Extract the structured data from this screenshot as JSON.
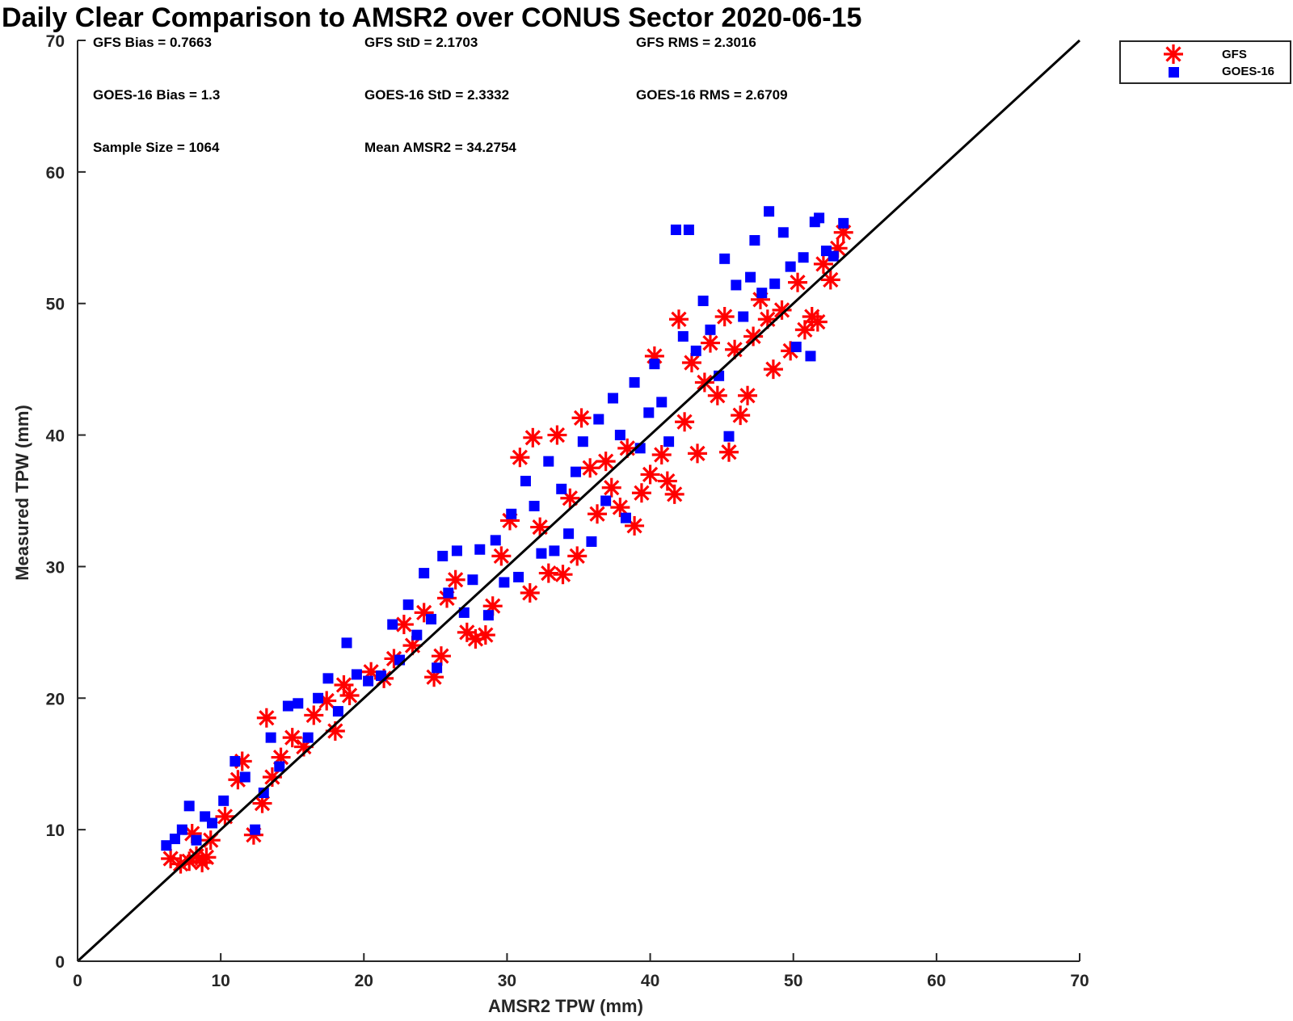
{
  "chart_data": {
    "type": "scatter",
    "title": "Daily Clear Comparison to AMSR2 over CONUS Sector 2020-06-15",
    "xlabel": "AMSR2 TPW (mm)",
    "ylabel": "Measured TPW (mm)",
    "xlim": [
      0,
      70
    ],
    "ylim": [
      0,
      70
    ],
    "xticks": [
      "0",
      "10",
      "20",
      "30",
      "40",
      "50",
      "60",
      "70"
    ],
    "yticks": [
      "0",
      "10",
      "20",
      "30",
      "40",
      "50",
      "60",
      "70"
    ],
    "grid": false,
    "legend_position": "outside-top-right",
    "reference_line": {
      "x": [
        0,
        70
      ],
      "y": [
        0,
        70
      ],
      "color": "#000000"
    },
    "stats": {
      "gfs_bias": "GFS Bias = 0.7663",
      "gfs_std": "GFS StD = 2.1703",
      "gfs_rms": "GFS RMS = 2.3016",
      "goes_bias": "GOES-16 Bias = 1.3",
      "goes_std": "GOES-16 StD = 2.3332",
      "goes_rms": "GOES-16 RMS = 2.6709",
      "sample_size": "Sample Size = 1064",
      "mean_amsr2": "Mean AMSR2 = 34.2754"
    },
    "series": [
      {
        "name": "GFS",
        "marker": "asterisk",
        "color": "#ff0000",
        "points": [
          [
            6.5,
            7.8
          ],
          [
            7.2,
            7.4
          ],
          [
            7.8,
            7.6
          ],
          [
            8.3,
            8.0
          ],
          [
            8.7,
            7.5
          ],
          [
            9.0,
            7.9
          ],
          [
            8.0,
            9.7
          ],
          [
            9.3,
            9.2
          ],
          [
            10.3,
            11.0
          ],
          [
            11.2,
            13.8
          ],
          [
            11.5,
            15.2
          ],
          [
            12.3,
            9.6
          ],
          [
            12.9,
            12.0
          ],
          [
            13.2,
            18.5
          ],
          [
            13.6,
            14.0
          ],
          [
            14.2,
            15.5
          ],
          [
            15.0,
            17.0
          ],
          [
            15.8,
            16.3
          ],
          [
            16.5,
            18.7
          ],
          [
            17.4,
            19.8
          ],
          [
            18.0,
            17.5
          ],
          [
            18.6,
            21.0
          ],
          [
            19.0,
            20.2
          ],
          [
            20.5,
            22.0
          ],
          [
            21.4,
            21.5
          ],
          [
            22.1,
            23.0
          ],
          [
            22.8,
            25.6
          ],
          [
            23.4,
            24.0
          ],
          [
            24.2,
            26.5
          ],
          [
            24.9,
            21.6
          ],
          [
            25.4,
            23.2
          ],
          [
            25.8,
            27.6
          ],
          [
            26.4,
            29.0
          ],
          [
            27.2,
            25.0
          ],
          [
            27.8,
            24.5
          ],
          [
            28.5,
            24.8
          ],
          [
            29.0,
            27.0
          ],
          [
            29.6,
            30.8
          ],
          [
            30.2,
            33.5
          ],
          [
            30.9,
            38.3
          ],
          [
            31.6,
            28.0
          ],
          [
            31.8,
            39.8
          ],
          [
            32.3,
            33.0
          ],
          [
            32.9,
            29.5
          ],
          [
            33.5,
            40.0
          ],
          [
            33.9,
            29.4
          ],
          [
            34.4,
            35.2
          ],
          [
            34.9,
            30.8
          ],
          [
            35.2,
            41.3
          ],
          [
            35.8,
            37.5
          ],
          [
            36.3,
            34.0
          ],
          [
            36.9,
            38.0
          ],
          [
            37.3,
            36.0
          ],
          [
            37.9,
            34.5
          ],
          [
            38.4,
            39.0
          ],
          [
            38.9,
            33.1
          ],
          [
            39.4,
            35.6
          ],
          [
            40.0,
            37.0
          ],
          [
            40.3,
            46.0
          ],
          [
            40.8,
            38.5
          ],
          [
            41.2,
            36.5
          ],
          [
            41.7,
            35.5
          ],
          [
            42.0,
            48.8
          ],
          [
            42.4,
            41.0
          ],
          [
            42.9,
            45.5
          ],
          [
            43.3,
            38.6
          ],
          [
            43.8,
            44.0
          ],
          [
            44.2,
            47.0
          ],
          [
            44.7,
            43.0
          ],
          [
            45.2,
            49.0
          ],
          [
            45.5,
            38.7
          ],
          [
            45.9,
            46.5
          ],
          [
            46.3,
            41.5
          ],
          [
            46.8,
            43.0
          ],
          [
            47.2,
            47.5
          ],
          [
            47.7,
            50.3
          ],
          [
            48.2,
            48.8
          ],
          [
            48.6,
            45.0
          ],
          [
            49.2,
            49.5
          ],
          [
            49.8,
            46.4
          ],
          [
            50.3,
            51.6
          ],
          [
            50.8,
            48.0
          ],
          [
            51.3,
            49.0
          ],
          [
            51.7,
            48.6
          ],
          [
            52.1,
            53.0
          ],
          [
            52.6,
            51.8
          ],
          [
            53.1,
            54.2
          ],
          [
            53.5,
            55.4
          ]
        ]
      },
      {
        "name": "GOES-16",
        "marker": "square",
        "color": "#0000ff",
        "points": [
          [
            6.2,
            8.8
          ],
          [
            6.8,
            9.3
          ],
          [
            7.3,
            10.0
          ],
          [
            7.8,
            11.8
          ],
          [
            8.3,
            9.2
          ],
          [
            8.9,
            11.0
          ],
          [
            9.4,
            10.5
          ],
          [
            10.2,
            12.2
          ],
          [
            11.0,
            15.2
          ],
          [
            11.7,
            14.0
          ],
          [
            12.4,
            10.0
          ],
          [
            13.0,
            12.8
          ],
          [
            13.5,
            17.0
          ],
          [
            14.1,
            14.8
          ],
          [
            14.7,
            19.4
          ],
          [
            15.4,
            19.6
          ],
          [
            16.1,
            17.0
          ],
          [
            16.8,
            20.0
          ],
          [
            17.5,
            21.5
          ],
          [
            18.2,
            19.0
          ],
          [
            18.8,
            24.2
          ],
          [
            19.5,
            21.8
          ],
          [
            20.3,
            21.3
          ],
          [
            21.2,
            21.7
          ],
          [
            22.0,
            25.6
          ],
          [
            22.5,
            22.9
          ],
          [
            23.1,
            27.1
          ],
          [
            23.7,
            24.8
          ],
          [
            24.2,
            29.5
          ],
          [
            24.7,
            26.0
          ],
          [
            25.1,
            22.3
          ],
          [
            25.5,
            30.8
          ],
          [
            25.9,
            28.0
          ],
          [
            26.5,
            31.2
          ],
          [
            27.0,
            26.5
          ],
          [
            27.6,
            29.0
          ],
          [
            28.1,
            31.3
          ],
          [
            28.7,
            26.3
          ],
          [
            29.2,
            32.0
          ],
          [
            29.8,
            28.8
          ],
          [
            30.3,
            34.0
          ],
          [
            30.8,
            29.2
          ],
          [
            31.3,
            36.5
          ],
          [
            31.9,
            34.6
          ],
          [
            32.4,
            31.0
          ],
          [
            32.9,
            38.0
          ],
          [
            33.3,
            31.2
          ],
          [
            33.8,
            35.9
          ],
          [
            34.3,
            32.5
          ],
          [
            34.8,
            37.2
          ],
          [
            35.3,
            39.5
          ],
          [
            35.9,
            31.9
          ],
          [
            36.4,
            41.2
          ],
          [
            36.9,
            35.0
          ],
          [
            37.4,
            42.8
          ],
          [
            37.9,
            40.0
          ],
          [
            38.3,
            33.7
          ],
          [
            38.9,
            44.0
          ],
          [
            39.3,
            39.0
          ],
          [
            39.9,
            41.7
          ],
          [
            40.3,
            45.4
          ],
          [
            40.8,
            42.5
          ],
          [
            41.3,
            39.5
          ],
          [
            41.8,
            55.6
          ],
          [
            42.3,
            47.5
          ],
          [
            42.7,
            55.6
          ],
          [
            43.2,
            46.4
          ],
          [
            43.7,
            50.2
          ],
          [
            44.2,
            48.0
          ],
          [
            44.8,
            44.5
          ],
          [
            45.2,
            53.4
          ],
          [
            45.5,
            39.9
          ],
          [
            46.0,
            51.4
          ],
          [
            46.5,
            49.0
          ],
          [
            47.0,
            52.0
          ],
          [
            47.3,
            54.8
          ],
          [
            47.8,
            50.8
          ],
          [
            48.3,
            57.0
          ],
          [
            48.7,
            51.5
          ],
          [
            49.3,
            55.4
          ],
          [
            49.8,
            52.8
          ],
          [
            50.2,
            46.7
          ],
          [
            50.7,
            53.5
          ],
          [
            51.2,
            46.0
          ],
          [
            51.5,
            56.2
          ],
          [
            51.8,
            56.5
          ],
          [
            52.3,
            54.0
          ],
          [
            52.8,
            53.6
          ],
          [
            53.5,
            56.1
          ]
        ]
      }
    ]
  }
}
